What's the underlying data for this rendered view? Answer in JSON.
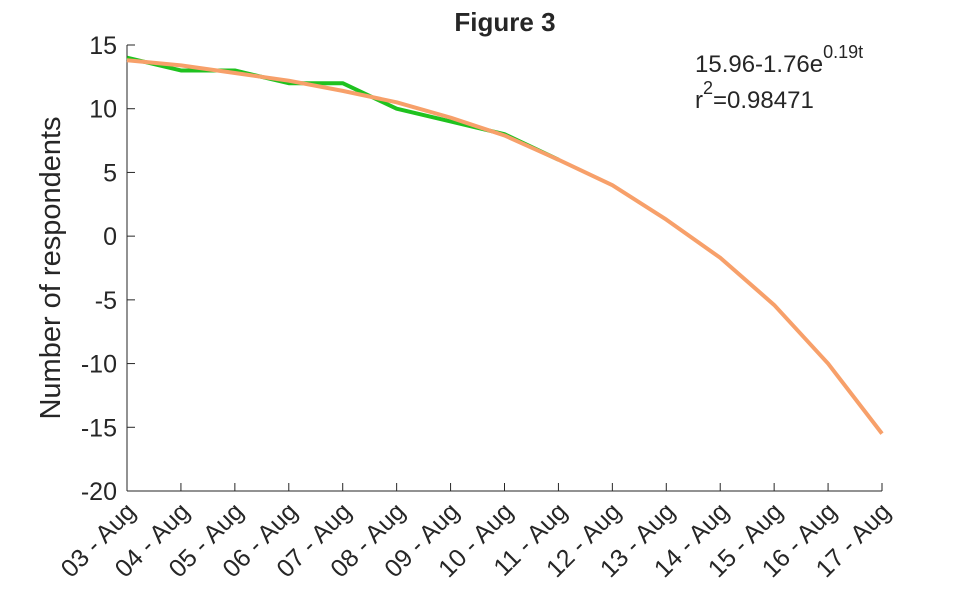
{
  "chart_data": {
    "type": "line",
    "title": "Figure 3",
    "ylabel": "Number of respondents",
    "annotations": [
      [
        "15.96-1.76e",
        "0.19t"
      ],
      [
        "r",
        "2",
        "=0.98471"
      ]
    ],
    "categories": [
      "03 - Aug",
      "04 - Aug",
      "05 - Aug",
      "06 - Aug",
      "07 - Aug",
      "08 - Aug",
      "09 - Aug",
      "10 - Aug",
      "11 - Aug",
      "12 - Aug",
      "13 - Aug",
      "14 - Aug",
      "15 - Aug",
      "16 - Aug",
      "17 - Aug"
    ],
    "series": [
      {
        "color": "#1fc21f",
        "values": [
          14,
          13,
          13,
          12,
          12,
          10,
          9,
          8,
          6,
          null,
          null,
          null,
          null,
          null,
          null
        ]
      },
      {
        "color": "#f7a06a",
        "values": [
          13.8,
          13.4,
          12.8,
          12.2,
          11.4,
          10.5,
          9.3,
          7.9,
          6.0,
          4.0,
          1.3,
          -1.7,
          -5.4,
          -10,
          -15.5
        ]
      }
    ],
    "ylim": [
      -20,
      15
    ],
    "yticks": [
      -20,
      -15,
      -10,
      -5,
      0,
      5,
      10,
      15
    ]
  }
}
